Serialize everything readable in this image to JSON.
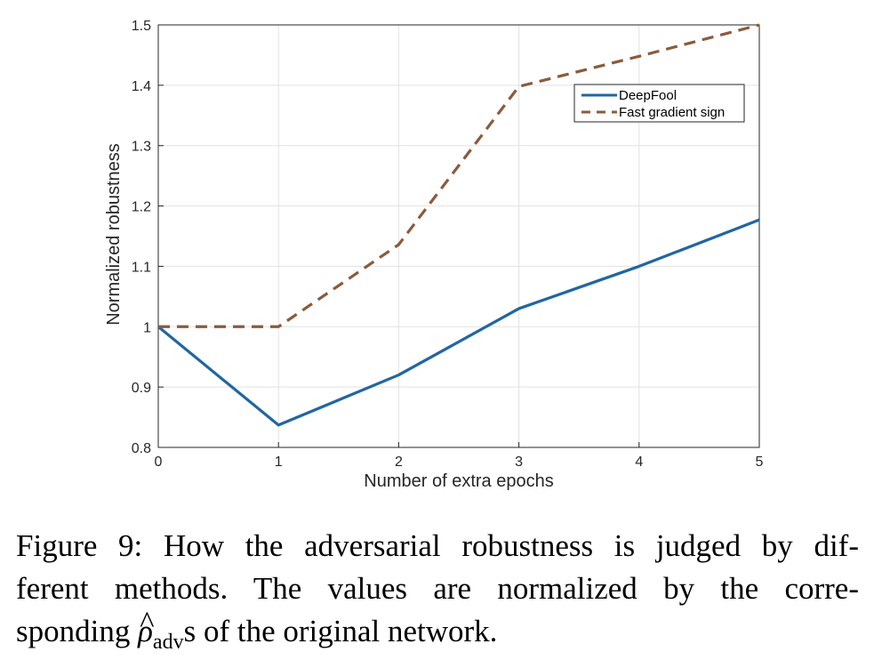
{
  "chart_data": {
    "type": "line",
    "title": "",
    "xlabel": "Number of extra epochs",
    "ylabel": "Normalized robustness",
    "xlim": [
      0,
      5
    ],
    "ylim": [
      0.8,
      1.5
    ],
    "xticks": [
      "0",
      "1",
      "2",
      "3",
      "4",
      "5"
    ],
    "yticks": [
      "0.8",
      "0.9",
      "1",
      "1.1",
      "1.2",
      "1.3",
      "1.4",
      "1.5"
    ],
    "grid": true,
    "legend_position": "top-right",
    "x": [
      0,
      1,
      2,
      3,
      4,
      5
    ],
    "series": [
      {
        "name": "DeepFool",
        "values": [
          1.0,
          0.837,
          0.92,
          1.03,
          1.1,
          1.177
        ],
        "color": "#2166a3",
        "style": "solid"
      },
      {
        "name": "Fast gradient sign",
        "values": [
          1.0,
          1.0,
          1.136,
          1.398,
          1.448,
          1.5
        ],
        "color": "#8b5a3c",
        "style": "dashed"
      }
    ]
  },
  "caption": {
    "line1": "Figure 9: How the adversarial robustness is judged by dif-",
    "line2": "ferent methods.  The values are normalized by the corre-",
    "line3_pre": "sponding ",
    "rho": "ρ",
    "hat": "^",
    "sub": "adv",
    "line3_post": "s of the original network."
  }
}
